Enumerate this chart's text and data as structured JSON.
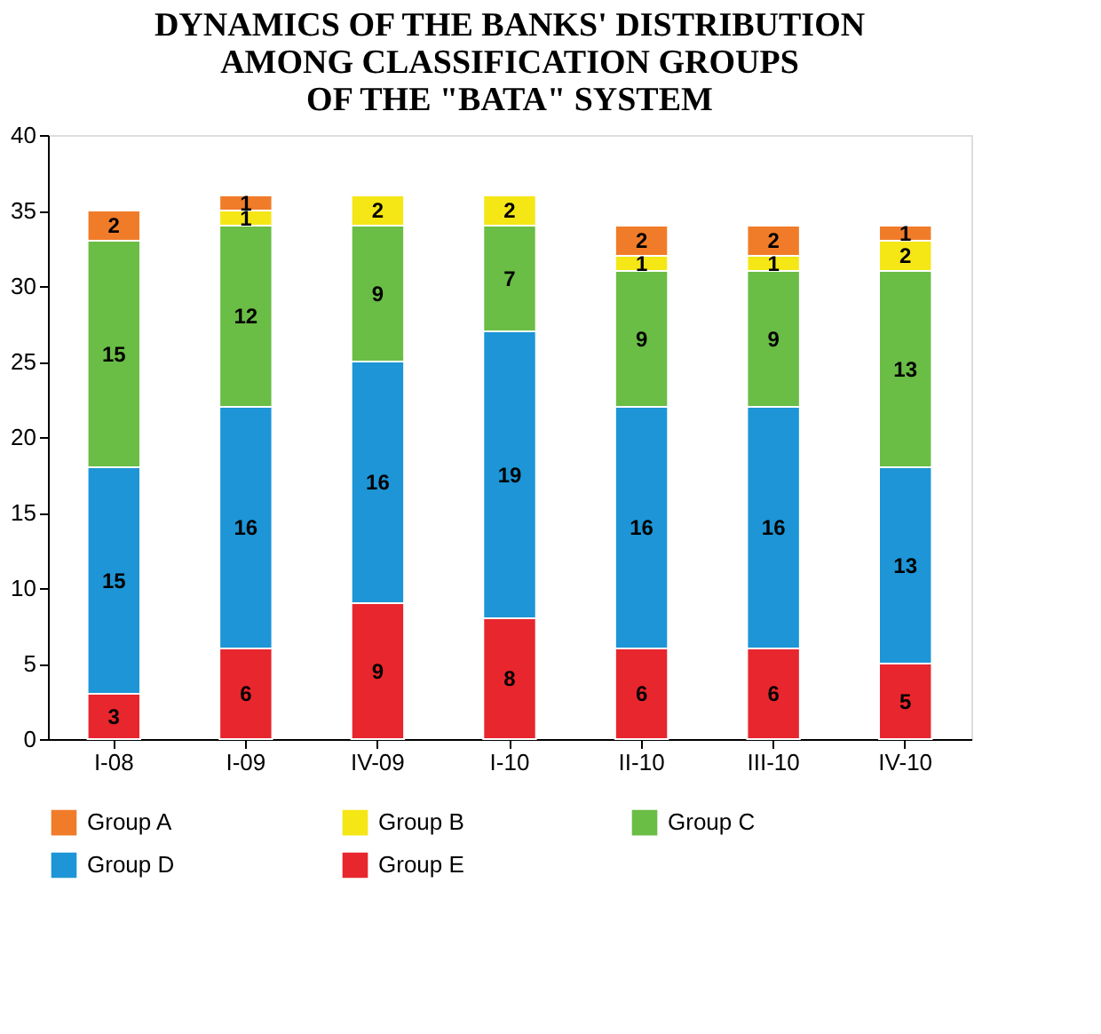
{
  "chart_data": {
    "type": "bar",
    "title": "DYNAMICS OF THE BANKS' DISTRIBUTION\nAMONG CLASSIFICATION GROUPS\nOF THE \"BATA\" SYSTEM",
    "categories": [
      "I-08",
      "I-09",
      "IV-09",
      "I-10",
      "II-10",
      "III-10",
      "IV-10"
    ],
    "stacked": true,
    "series": [
      {
        "name": "Group E",
        "color": "#e8262d",
        "values": [
          3,
          6,
          9,
          8,
          6,
          6,
          5
        ]
      },
      {
        "name": "Group D",
        "color": "#1d95d6",
        "values": [
          15,
          16,
          16,
          19,
          16,
          16,
          13
        ]
      },
      {
        "name": "Group C",
        "color": "#6abd45",
        "values": [
          15,
          12,
          9,
          7,
          9,
          9,
          13
        ]
      },
      {
        "name": "Group B",
        "color": "#f5e616",
        "values": [
          null,
          1,
          2,
          2,
          1,
          1,
          2
        ]
      },
      {
        "name": "Group A",
        "color": "#f07c2a",
        "values": [
          2,
          1,
          null,
          null,
          2,
          2,
          1
        ]
      }
    ],
    "ylim": [
      0,
      40
    ],
    "yticks": [
      0,
      5,
      10,
      15,
      20,
      25,
      30,
      35,
      40
    ],
    "grid": false,
    "legend": "bottom",
    "data_labels": true
  }
}
